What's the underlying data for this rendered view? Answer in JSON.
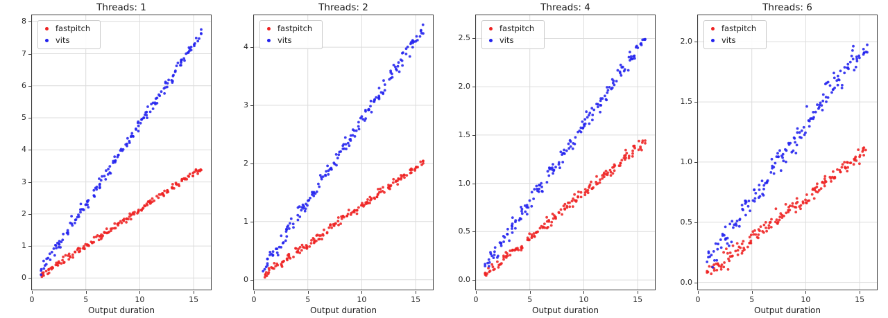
{
  "figure": {
    "background": "#ffffff"
  },
  "chart_data": [
    {
      "type": "scatter",
      "title": "Threads: 1",
      "xlabel": "Output duration",
      "xlim": [
        0,
        16.6
      ],
      "ylim": [
        -0.36,
        8.2
      ],
      "xticks": [
        0,
        5,
        10,
        15
      ],
      "yticks": [
        0,
        1,
        2,
        3,
        4,
        5,
        6,
        7,
        8
      ],
      "ytick_format": "int",
      "grid": true,
      "legend_position": "upper-left",
      "series": [
        {
          "name": "fastpitch",
          "color": "#ee2222",
          "trend": {
            "slope": 0.225,
            "intercept": -0.11,
            "noise_sd": 0.05,
            "x_min": 0.85,
            "x_max": 15.7,
            "n_points": 170,
            "seed": 101
          }
        },
        {
          "name": "vits",
          "color": "#2222ee",
          "trend": {
            "slope": 0.5,
            "intercept": -0.2,
            "noise_sd": 0.09,
            "x_min": 0.85,
            "x_max": 15.7,
            "n_points": 170,
            "seed": 202
          }
        }
      ]
    },
    {
      "type": "scatter",
      "title": "Threads: 2",
      "xlabel": "Output duration",
      "xlim": [
        0,
        16.6
      ],
      "ylim": [
        -0.17,
        4.55
      ],
      "xticks": [
        0,
        5,
        10,
        15
      ],
      "yticks": [
        0,
        1,
        2,
        3,
        4
      ],
      "ytick_format": "int",
      "grid": true,
      "legend_position": "upper-left",
      "series": [
        {
          "name": "fastpitch",
          "color": "#ee2222",
          "trend": {
            "slope": 0.132,
            "intercept": -0.05,
            "noise_sd": 0.035,
            "x_min": 0.85,
            "x_max": 15.7,
            "n_points": 170,
            "seed": 303
          }
        },
        {
          "name": "vits",
          "color": "#2222ee",
          "trend": {
            "slope": 0.28,
            "intercept": -0.06,
            "noise_sd": 0.06,
            "x_min": 0.85,
            "x_max": 15.7,
            "n_points": 170,
            "seed": 404
          }
        }
      ]
    },
    {
      "type": "scatter",
      "title": "Threads: 4",
      "xlabel": "Output duration",
      "xlim": [
        0,
        16.6
      ],
      "ylim": [
        -0.1,
        2.74
      ],
      "xticks": [
        0,
        5,
        10,
        15
      ],
      "yticks": [
        0,
        0.5,
        1,
        1.5,
        2,
        2.5
      ],
      "ytick_format": "1dp",
      "grid": true,
      "legend_position": "upper-left",
      "series": [
        {
          "name": "fastpitch",
          "color": "#ee2222",
          "trend": {
            "slope": 0.093,
            "intercept": -0.03,
            "noise_sd": 0.028,
            "x_min": 0.85,
            "x_max": 15.7,
            "n_points": 170,
            "seed": 505
          }
        },
        {
          "name": "vits",
          "color": "#2222ee",
          "trend": {
            "slope": 0.16,
            "intercept": 0.0,
            "noise_sd": 0.045,
            "x_min": 0.85,
            "x_max": 15.7,
            "n_points": 170,
            "seed": 606
          }
        }
      ]
    },
    {
      "type": "scatter",
      "title": "Threads: 6",
      "xlabel": "Output duration",
      "xlim": [
        0,
        16.6
      ],
      "ylim": [
        -0.06,
        2.22
      ],
      "xticks": [
        0,
        5,
        10,
        15
      ],
      "yticks": [
        0,
        0.5,
        1,
        1.5,
        2
      ],
      "ytick_format": "1dp",
      "grid": true,
      "legend_position": "upper-left",
      "series": [
        {
          "name": "fastpitch",
          "color": "#ee2222",
          "trend": {
            "slope": 0.07,
            "intercept": 0.01,
            "noise_sd": 0.035,
            "x_min": 0.85,
            "x_max": 15.7,
            "n_points": 170,
            "seed": 707
          }
        },
        {
          "name": "vits",
          "color": "#2222ee",
          "trend": {
            "slope": 0.123,
            "intercept": 0.08,
            "noise_sd": 0.05,
            "x_min": 0.85,
            "x_max": 15.7,
            "n_points": 170,
            "seed": 808
          }
        }
      ]
    }
  ]
}
